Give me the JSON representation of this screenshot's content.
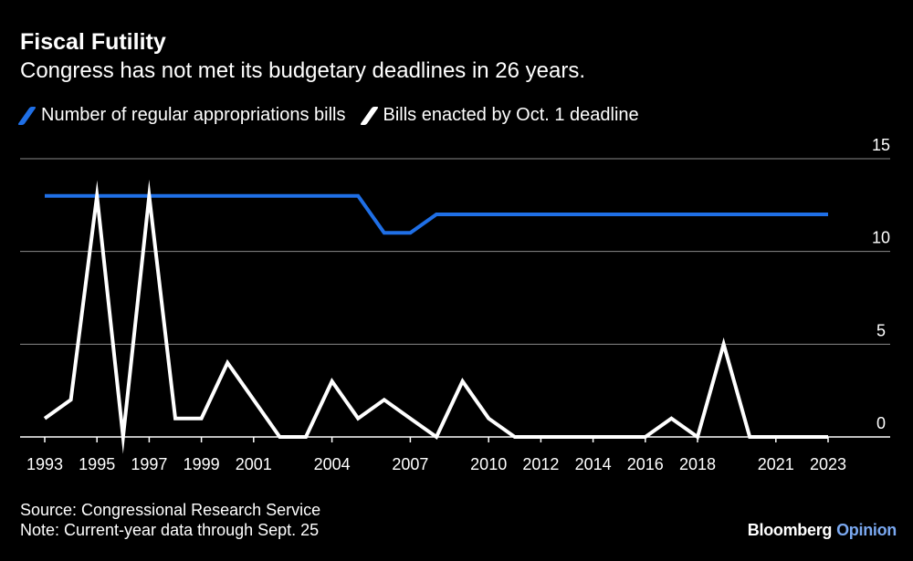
{
  "title": "Fiscal Futility",
  "subtitle": "Congress has not met its budgetary deadlines in 26 years.",
  "colors": {
    "series1": "#1f6fe6",
    "series2": "#ffffff",
    "grid": "#8a8a8a",
    "background": "#000000",
    "brand_accent": "#7aa8f0"
  },
  "chart_data": {
    "type": "line",
    "title": "Fiscal Futility",
    "xlabel": "",
    "ylabel": "",
    "xlim": [
      1993,
      2023
    ],
    "ylim": [
      0,
      15
    ],
    "yticks": [
      0,
      5,
      10,
      15
    ],
    "xtick_labels": [
      "1993",
      "1995",
      "1997",
      "1999",
      "2001",
      "2004",
      "2007",
      "2010",
      "2012",
      "2014",
      "2016",
      "2018",
      "2021",
      "2023"
    ],
    "x": [
      1993,
      1994,
      1995,
      1996,
      1997,
      1998,
      1999,
      2000,
      2001,
      2002,
      2003,
      2004,
      2005,
      2006,
      2007,
      2008,
      2009,
      2010,
      2011,
      2012,
      2013,
      2014,
      2015,
      2016,
      2017,
      2018,
      2019,
      2020,
      2021,
      2022,
      2023
    ],
    "series": [
      {
        "name": "Number of regular appropriations bills",
        "color": "#1f6fe6",
        "values": [
          13,
          13,
          13,
          13,
          13,
          13,
          13,
          13,
          13,
          13,
          13,
          13,
          13,
          11,
          11,
          12,
          12,
          12,
          12,
          12,
          12,
          12,
          12,
          12,
          12,
          12,
          12,
          12,
          12,
          12,
          12
        ]
      },
      {
        "name": "Bills enacted by Oct. 1 deadline",
        "color": "#ffffff",
        "values": [
          1,
          2,
          13,
          0,
          13,
          1,
          1,
          4,
          2,
          0,
          0,
          3,
          1,
          2,
          1,
          0,
          3,
          1,
          0,
          0,
          0,
          0,
          0,
          0,
          1,
          0,
          5,
          0,
          0,
          0,
          0
        ]
      }
    ]
  },
  "footer": {
    "source": "Source: Congressional Research Service",
    "note": "Note: Current-year data through Sept. 25"
  },
  "brand": {
    "name": "Bloomberg",
    "suffix": "Opinion"
  }
}
